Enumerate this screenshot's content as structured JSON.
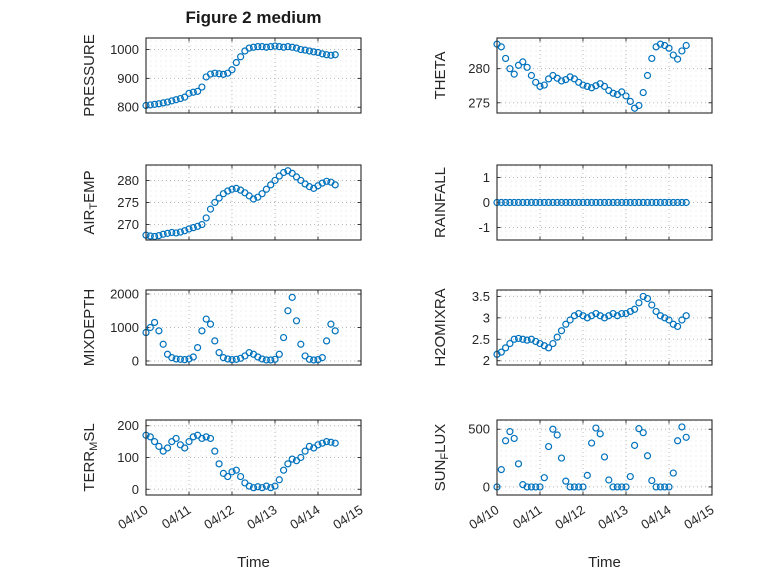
{
  "figure": {
    "title": "Figure 2 medium"
  },
  "xlabel": "Time",
  "marker_color": "#0072BD",
  "axis_color": "#262626",
  "grid_color": "#b8b8b8",
  "xlim": [
    0,
    5
  ],
  "x_tick_labels": [
    "04/10",
    "04/11",
    "04/12",
    "04/13",
    "04/14",
    "04/15"
  ],
  "x": [
    0,
    0.1,
    0.2,
    0.3,
    0.4,
    0.5,
    0.6,
    0.7,
    0.8,
    0.9,
    1,
    1.1,
    1.2,
    1.3,
    1.4,
    1.5,
    1.6,
    1.7,
    1.8,
    1.9,
    2,
    2.1,
    2.2,
    2.3,
    2.4,
    2.5,
    2.6,
    2.7,
    2.8,
    2.9,
    3,
    3.1,
    3.2,
    3.3,
    3.4,
    3.5,
    3.6,
    3.7,
    3.8,
    3.9,
    4,
    4.1,
    4.2,
    4.3,
    4.4
  ],
  "chart_data": [
    {
      "name": "pressure",
      "type": "scatter",
      "ylabel": "PRESSURE",
      "ylabel_parts": {
        "pre": "PRESSURE",
        "sub": "",
        "post": ""
      },
      "yticks": [
        800,
        900,
        1000
      ],
      "ylim": [
        780,
        1040
      ],
      "y": [
        806,
        808,
        810,
        812,
        815,
        818,
        822,
        826,
        830,
        835,
        848,
        852,
        855,
        870,
        905,
        915,
        918,
        916,
        914,
        918,
        930,
        955,
        975,
        995,
        1005,
        1008,
        1010,
        1010,
        1008,
        1010,
        1012,
        1010,
        1008,
        1010,
        1008,
        1005,
        1000,
        998,
        995,
        992,
        990,
        985,
        982,
        980,
        982
      ]
    },
    {
      "name": "theta",
      "type": "scatter",
      "ylabel": "THETA",
      "ylabel_parts": {
        "pre": "THETA",
        "sub": "",
        "post": ""
      },
      "yticks": [
        275,
        280
      ],
      "ylim": [
        273.5,
        284.5
      ],
      "y": [
        283.6,
        283.2,
        281.5,
        280,
        279.2,
        280.5,
        281,
        280.2,
        279,
        278,
        277.4,
        277.6,
        278.5,
        279,
        278.6,
        278.2,
        278.4,
        278.8,
        278.5,
        278,
        277.6,
        277.4,
        277.2,
        277.5,
        277.8,
        277.4,
        276.8,
        276.4,
        276.2,
        276.6,
        276,
        275.2,
        274.2,
        274.6,
        276.5,
        279,
        281.5,
        283.2,
        283.6,
        283.4,
        283,
        282,
        281.4,
        282.6,
        283.4
      ]
    },
    {
      "name": "air-temp",
      "type": "scatter",
      "ylabel": "AIR_TEMP",
      "ylabel_parts": {
        "pre": "AIR",
        "sub": "T",
        "post": "EMP"
      },
      "yticks": [
        270,
        275,
        280
      ],
      "ylim": [
        266.5,
        283.5
      ],
      "y": [
        267.6,
        267.4,
        267.3,
        267.5,
        267.8,
        268,
        268.2,
        268.1,
        268.3,
        268.6,
        269,
        269.3,
        269.6,
        270,
        271.5,
        273.5,
        275,
        276,
        277,
        277.6,
        278,
        278.2,
        277.8,
        277.2,
        276.5,
        275.8,
        276.2,
        277,
        278,
        279,
        280,
        281,
        281.8,
        282.2,
        281.6,
        280.8,
        280,
        279.2,
        278.6,
        278.2,
        278.8,
        279.4,
        279.8,
        279.6,
        279
      ]
    },
    {
      "name": "rainfall",
      "type": "scatter",
      "ylabel": "RAINFALL",
      "ylabel_parts": {
        "pre": "RAINFALL",
        "sub": "",
        "post": ""
      },
      "yticks": [
        -1,
        0,
        1
      ],
      "ylim": [
        -1.5,
        1.5
      ],
      "y": [
        0,
        0,
        0,
        0,
        0,
        0,
        0,
        0,
        0,
        0,
        0,
        0,
        0,
        0,
        0,
        0,
        0,
        0,
        0,
        0,
        0,
        0,
        0,
        0,
        0,
        0,
        0,
        0,
        0,
        0,
        0,
        0,
        0,
        0,
        0,
        0,
        0,
        0,
        0,
        0,
        0,
        0,
        0,
        0,
        0
      ]
    },
    {
      "name": "mixdepth",
      "type": "scatter",
      "ylabel": "MIXDEPTH",
      "ylabel_parts": {
        "pre": "MIXDEPTH",
        "sub": "",
        "post": ""
      },
      "yticks": [
        0,
        1000,
        2000
      ],
      "ylim": [
        -120,
        2120
      ],
      "y": [
        850,
        1000,
        1150,
        900,
        500,
        200,
        100,
        60,
        50,
        40,
        60,
        120,
        400,
        900,
        1250,
        1100,
        600,
        250,
        100,
        60,
        40,
        50,
        80,
        150,
        250,
        200,
        120,
        60,
        30,
        30,
        50,
        200,
        700,
        1500,
        1900,
        1200,
        500,
        150,
        50,
        30,
        40,
        100,
        600,
        1100,
        900
      ]
    },
    {
      "name": "h2omixra",
      "type": "scatter",
      "ylabel": "H2OMIXRA",
      "ylabel_parts": {
        "pre": "H2OMIXRA",
        "sub": "",
        "post": ""
      },
      "yticks": [
        2,
        2.5,
        3,
        3.5
      ],
      "ylim": [
        1.9,
        3.65
      ],
      "y": [
        2.15,
        2.2,
        2.3,
        2.4,
        2.5,
        2.52,
        2.5,
        2.48,
        2.5,
        2.45,
        2.4,
        2.35,
        2.3,
        2.4,
        2.55,
        2.7,
        2.85,
        2.95,
        3.05,
        3.1,
        3.05,
        3,
        3.05,
        3.1,
        3.05,
        3,
        3.05,
        3.1,
        3.05,
        3.1,
        3.1,
        3.15,
        3.2,
        3.35,
        3.5,
        3.45,
        3.3,
        3.15,
        3.05,
        3,
        2.95,
        2.85,
        2.8,
        2.95,
        3.05
      ]
    },
    {
      "name": "terr-msl",
      "type": "scatter",
      "ylabel": "TERR_MSL",
      "ylabel_parts": {
        "pre": "TERR",
        "sub": "M",
        "post": "SL"
      },
      "yticks": [
        0,
        100,
        200
      ],
      "ylim": [
        -18,
        218
      ],
      "y": [
        170,
        165,
        150,
        135,
        120,
        130,
        150,
        160,
        140,
        130,
        150,
        165,
        170,
        160,
        165,
        160,
        120,
        80,
        50,
        40,
        55,
        60,
        40,
        20,
        10,
        5,
        8,
        5,
        10,
        5,
        10,
        30,
        60,
        80,
        95,
        90,
        100,
        120,
        135,
        130,
        140,
        145,
        150,
        148,
        145
      ]
    },
    {
      "name": "sun-flux",
      "type": "scatter",
      "ylabel": "SUN_FLUX",
      "ylabel_parts": {
        "pre": "SUN",
        "sub": "F",
        "post": "LUX"
      },
      "yticks": [
        0,
        500
      ],
      "ylim": [
        -70,
        580
      ],
      "y": [
        0,
        150,
        400,
        480,
        420,
        200,
        20,
        0,
        0,
        0,
        0,
        80,
        350,
        500,
        450,
        250,
        50,
        0,
        0,
        0,
        0,
        100,
        380,
        510,
        460,
        260,
        60,
        0,
        0,
        0,
        0,
        90,
        360,
        505,
        470,
        270,
        55,
        0,
        0,
        0,
        0,
        120,
        400,
        520,
        430
      ]
    }
  ]
}
